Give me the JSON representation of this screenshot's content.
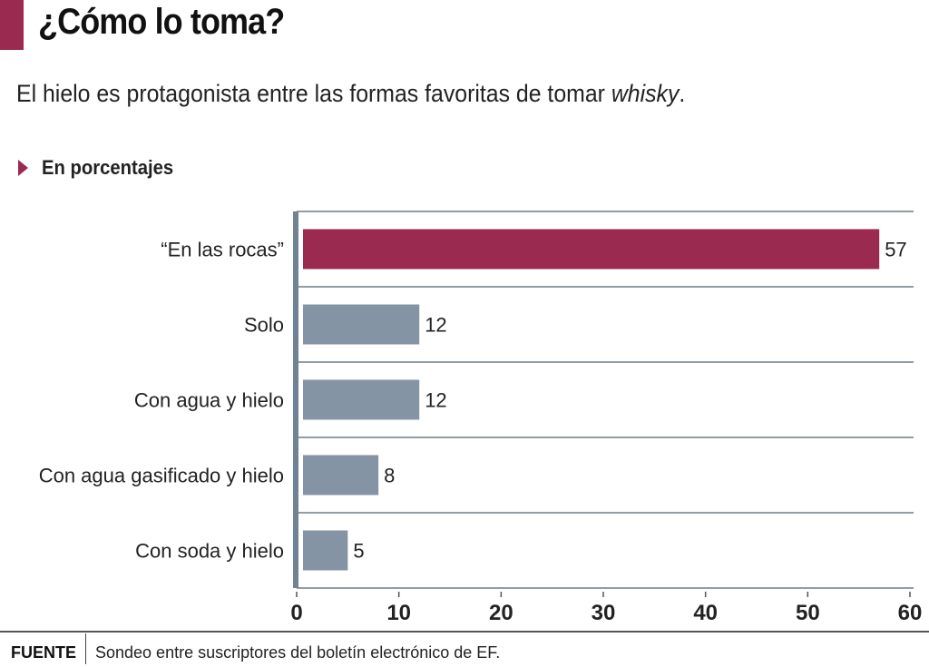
{
  "header": {
    "title": "¿Cómo lo toma?",
    "subtitle_main": "El hielo es protagonista entre las formas favoritas de tomar ",
    "subtitle_em": "whisky",
    "subtitle_end": ".",
    "unit_label": "En porcentajes"
  },
  "colors": {
    "accent": "#9a2a4f",
    "bar_default": "#8494a5",
    "axis": "#6f8394",
    "grid": "#6f7c88"
  },
  "chart_data": {
    "type": "bar",
    "orientation": "horizontal",
    "title": "¿Cómo lo toma?",
    "subtitle": "El hielo es protagonista entre las formas favoritas de tomar whisky.",
    "xlabel": "En porcentajes",
    "ylabel": "",
    "categories": [
      "“En las rocas”",
      "Solo",
      "Con agua y hielo",
      "Con agua gasificado y hielo",
      "Con soda y hielo"
    ],
    "values": [
      57,
      12,
      12,
      8,
      5
    ],
    "highlight_index": 0,
    "xlim": [
      0,
      60
    ],
    "xticks": [
      0,
      10,
      20,
      30,
      40,
      50,
      60
    ],
    "grid": "horizontal row separators",
    "legend": "none"
  },
  "source": {
    "key": "FUENTE",
    "text": "Sondeo entre suscriptores del boletín electrónico de EF."
  }
}
